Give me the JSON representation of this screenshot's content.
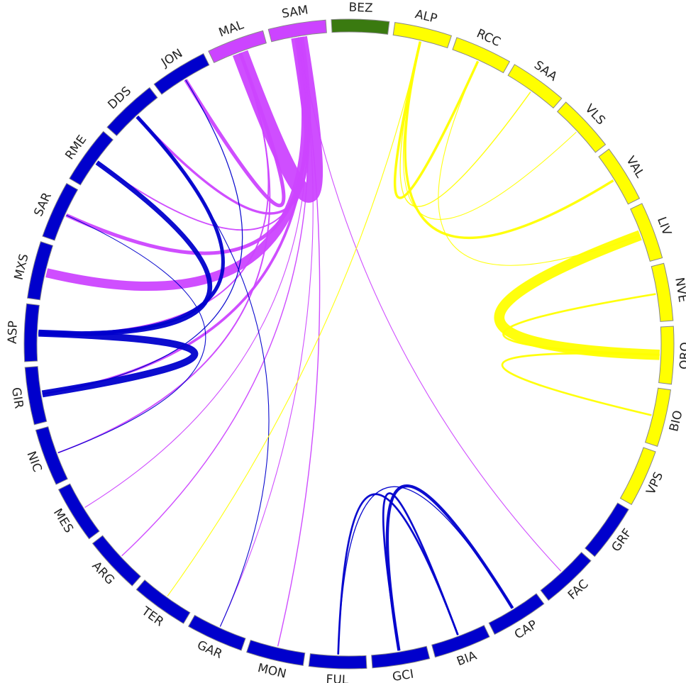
{
  "chart_data": {
    "type": "chord",
    "nodes": [
      {
        "name": "BEZ",
        "color": "#3a7a10"
      },
      {
        "name": "ALP",
        "color": "#ffff00"
      },
      {
        "name": "RCC",
        "color": "#ffff00"
      },
      {
        "name": "SAA",
        "color": "#ffff00"
      },
      {
        "name": "VLS",
        "color": "#ffff00"
      },
      {
        "name": "VAL",
        "color": "#ffff00"
      },
      {
        "name": "LIV",
        "color": "#ffff00"
      },
      {
        "name": "NVE",
        "color": "#ffff00"
      },
      {
        "name": "ORO",
        "color": "#ffff00"
      },
      {
        "name": "BIO",
        "color": "#ffff00"
      },
      {
        "name": "VPS",
        "color": "#ffff00"
      },
      {
        "name": "GRF",
        "color": "#0000cc"
      },
      {
        "name": "FAC",
        "color": "#0000cc"
      },
      {
        "name": "CAP",
        "color": "#0000cc"
      },
      {
        "name": "BIA",
        "color": "#0000cc"
      },
      {
        "name": "GCI",
        "color": "#0000cc"
      },
      {
        "name": "FUL",
        "color": "#0000cc"
      },
      {
        "name": "MON",
        "color": "#0000cc"
      },
      {
        "name": "GAR",
        "color": "#0000cc"
      },
      {
        "name": "TER",
        "color": "#0000cc"
      },
      {
        "name": "ARG",
        "color": "#0000cc"
      },
      {
        "name": "MES",
        "color": "#0000cc"
      },
      {
        "name": "NIC",
        "color": "#0000cc"
      },
      {
        "name": "GIR",
        "color": "#0000cc"
      },
      {
        "name": "ASP",
        "color": "#0000cc"
      },
      {
        "name": "MXS",
        "color": "#0000cc"
      },
      {
        "name": "SAR",
        "color": "#0000cc"
      },
      {
        "name": "RME",
        "color": "#0000cc"
      },
      {
        "name": "DDS",
        "color": "#0000cc"
      },
      {
        "name": "JON",
        "color": "#0000cc"
      },
      {
        "name": "MAL",
        "color": "#cc44ff"
      },
      {
        "name": "SAM",
        "color": "#cc44ff"
      }
    ],
    "links": [
      {
        "source": 31,
        "target": 30,
        "value": 14
      },
      {
        "source": 31,
        "target": 25,
        "value": 8
      },
      {
        "source": 30,
        "target": 29,
        "value": 3
      },
      {
        "source": 31,
        "target": 26,
        "value": 3
      },
      {
        "source": 31,
        "target": 28,
        "value": 2
      },
      {
        "source": 31,
        "target": 23,
        "value": 2
      },
      {
        "source": 30,
        "target": 22,
        "value": 1
      },
      {
        "source": 31,
        "target": 21,
        "value": 0.5
      },
      {
        "source": 31,
        "target": 20,
        "value": 0.7
      },
      {
        "source": 31,
        "target": 18,
        "value": 0.5
      },
      {
        "source": 31,
        "target": 17,
        "value": 0.7
      },
      {
        "source": 31,
        "target": 12,
        "value": 0.5
      },
      {
        "source": 30,
        "target": 24,
        "value": 1
      },
      {
        "source": 31,
        "target": 27,
        "value": 1
      },
      {
        "source": 24,
        "target": 23,
        "value": 6
      },
      {
        "source": 27,
        "target": 24,
        "value": 4
      },
      {
        "source": 28,
        "target": 24,
        "value": 3
      },
      {
        "source": 29,
        "target": 23,
        "value": 0.6
      },
      {
        "source": 26,
        "target": 22,
        "value": 0.5
      },
      {
        "source": 28,
        "target": 18,
        "value": 0.5
      },
      {
        "source": 16,
        "target": 14,
        "value": 1.5
      },
      {
        "source": 15,
        "target": 13,
        "value": 2.5
      },
      {
        "source": 15,
        "target": 14,
        "value": 1.5
      },
      {
        "source": 16,
        "target": 13,
        "value": 0.7
      },
      {
        "source": 1,
        "target": 5,
        "value": 2
      },
      {
        "source": 2,
        "target": 1,
        "value": 2
      },
      {
        "source": 3,
        "target": 1,
        "value": 0.7
      },
      {
        "source": 4,
        "target": 1,
        "value": 0.5
      },
      {
        "source": 1,
        "target": 19,
        "value": 0.5
      },
      {
        "source": 6,
        "target": 8,
        "value": 9
      },
      {
        "source": 7,
        "target": 8,
        "value": 1.5
      },
      {
        "source": 9,
        "target": 8,
        "value": 1.5
      },
      {
        "source": 2,
        "target": 6,
        "value": 0.5
      }
    ]
  }
}
